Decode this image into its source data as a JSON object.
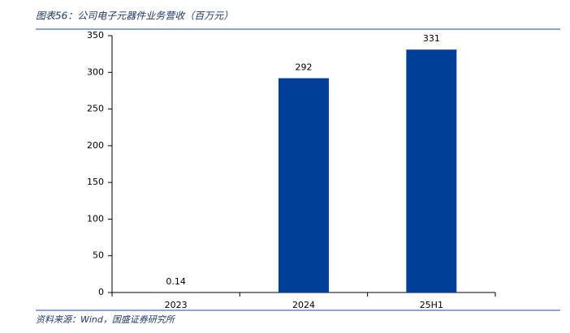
{
  "chart_data": {
    "type": "bar",
    "title": "图表56：公司电子元器件业务营收（百万元）",
    "source": "资料来源：Wind，国盛证券研究所",
    "categories": [
      "2023",
      "2024",
      "25H1"
    ],
    "values": [
      0.14,
      292,
      331
    ],
    "color": "#003f98",
    "ylim": [
      0,
      350
    ],
    "yticks": [
      0,
      50,
      100,
      150,
      200,
      250,
      300,
      350
    ],
    "grid": false
  }
}
